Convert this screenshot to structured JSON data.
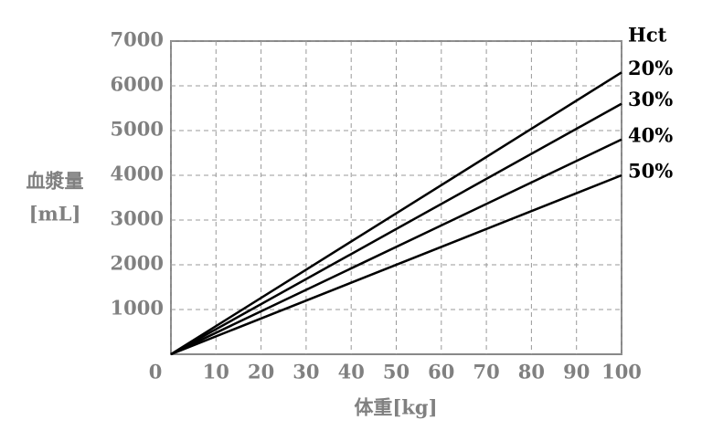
{
  "chart_data": {
    "type": "line",
    "x": [
      0,
      100
    ],
    "series": [
      {
        "name": "20%",
        "color": "#000000",
        "values": [
          0,
          6300
        ]
      },
      {
        "name": "30%",
        "color": "#000000",
        "values": [
          0,
          5600
        ]
      },
      {
        "name": "40%",
        "color": "#000000",
        "values": [
          0,
          4800
        ]
      },
      {
        "name": "50%",
        "color": "#000000",
        "values": [
          0,
          4000
        ]
      }
    ],
    "legend_title": "Hct",
    "ylabel": [
      "血漿量",
      "[mL]"
    ],
    "xlabel": "体重[kg]",
    "xlim": [
      0,
      100
    ],
    "xticks": [
      0,
      10,
      20,
      30,
      40,
      50,
      60,
      70,
      80,
      90,
      100
    ],
    "ylim": [
      0,
      7000
    ],
    "yticks": [
      1000,
      2000,
      3000,
      4000,
      5000,
      6000,
      7000
    ],
    "grid": true
  }
}
